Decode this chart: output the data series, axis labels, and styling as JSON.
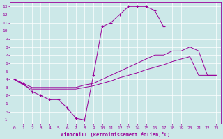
{
  "xlabel": "Windchill (Refroidissement éolien,°C)",
  "bg_color": "#cce8e8",
  "line_color": "#990099",
  "xlim": [
    -0.5,
    23.5
  ],
  "ylim": [
    -1.5,
    13.5
  ],
  "xticks": [
    0,
    1,
    2,
    3,
    4,
    5,
    6,
    7,
    8,
    9,
    10,
    11,
    12,
    13,
    14,
    15,
    16,
    17,
    18,
    19,
    20,
    21,
    22,
    23
  ],
  "yticks": [
    -1,
    0,
    1,
    2,
    3,
    4,
    5,
    6,
    7,
    8,
    9,
    10,
    11,
    12,
    13
  ],
  "series": [
    {
      "x": [
        0,
        1,
        2,
        3,
        4,
        5,
        6,
        7,
        8,
        9,
        10,
        11,
        12,
        13,
        14,
        15,
        16,
        17,
        18
      ],
      "y": [
        4,
        3.5,
        2.5,
        2.0,
        1.5,
        1.5,
        0.5,
        -0.8,
        -1.0,
        4.5,
        10.5,
        11.0,
        12.0,
        13.0,
        13.0,
        13.0,
        12.5,
        10.5,
        null
      ],
      "has_markers": true
    },
    {
      "x": [
        0,
        1,
        2,
        3,
        4,
        5,
        6,
        7,
        8,
        9,
        10,
        11,
        12,
        13,
        14,
        15,
        16,
        17,
        18,
        19,
        20,
        21,
        22,
        23
      ],
      "y": [
        4,
        3.5,
        3.0,
        3.0,
        3.0,
        3.0,
        3.0,
        3.0,
        3.3,
        3.5,
        4.0,
        4.5,
        5.0,
        5.5,
        6.0,
        6.5,
        7.0,
        7.0,
        7.5,
        7.5,
        8.0,
        7.5,
        4.5,
        4.5
      ],
      "has_markers": false
    },
    {
      "x": [
        0,
        1,
        2,
        3,
        4,
        5,
        6,
        7,
        8,
        9,
        10,
        11,
        12,
        13,
        14,
        15,
        16,
        17,
        18,
        19,
        20,
        21,
        22,
        23
      ],
      "y": [
        4,
        3.3,
        2.8,
        2.8,
        2.8,
        2.8,
        2.8,
        2.8,
        3.0,
        3.2,
        3.5,
        3.8,
        4.2,
        4.5,
        4.8,
        5.2,
        5.5,
        5.8,
        6.2,
        6.5,
        6.8,
        4.5,
        4.5,
        4.5
      ],
      "has_markers": false
    }
  ]
}
